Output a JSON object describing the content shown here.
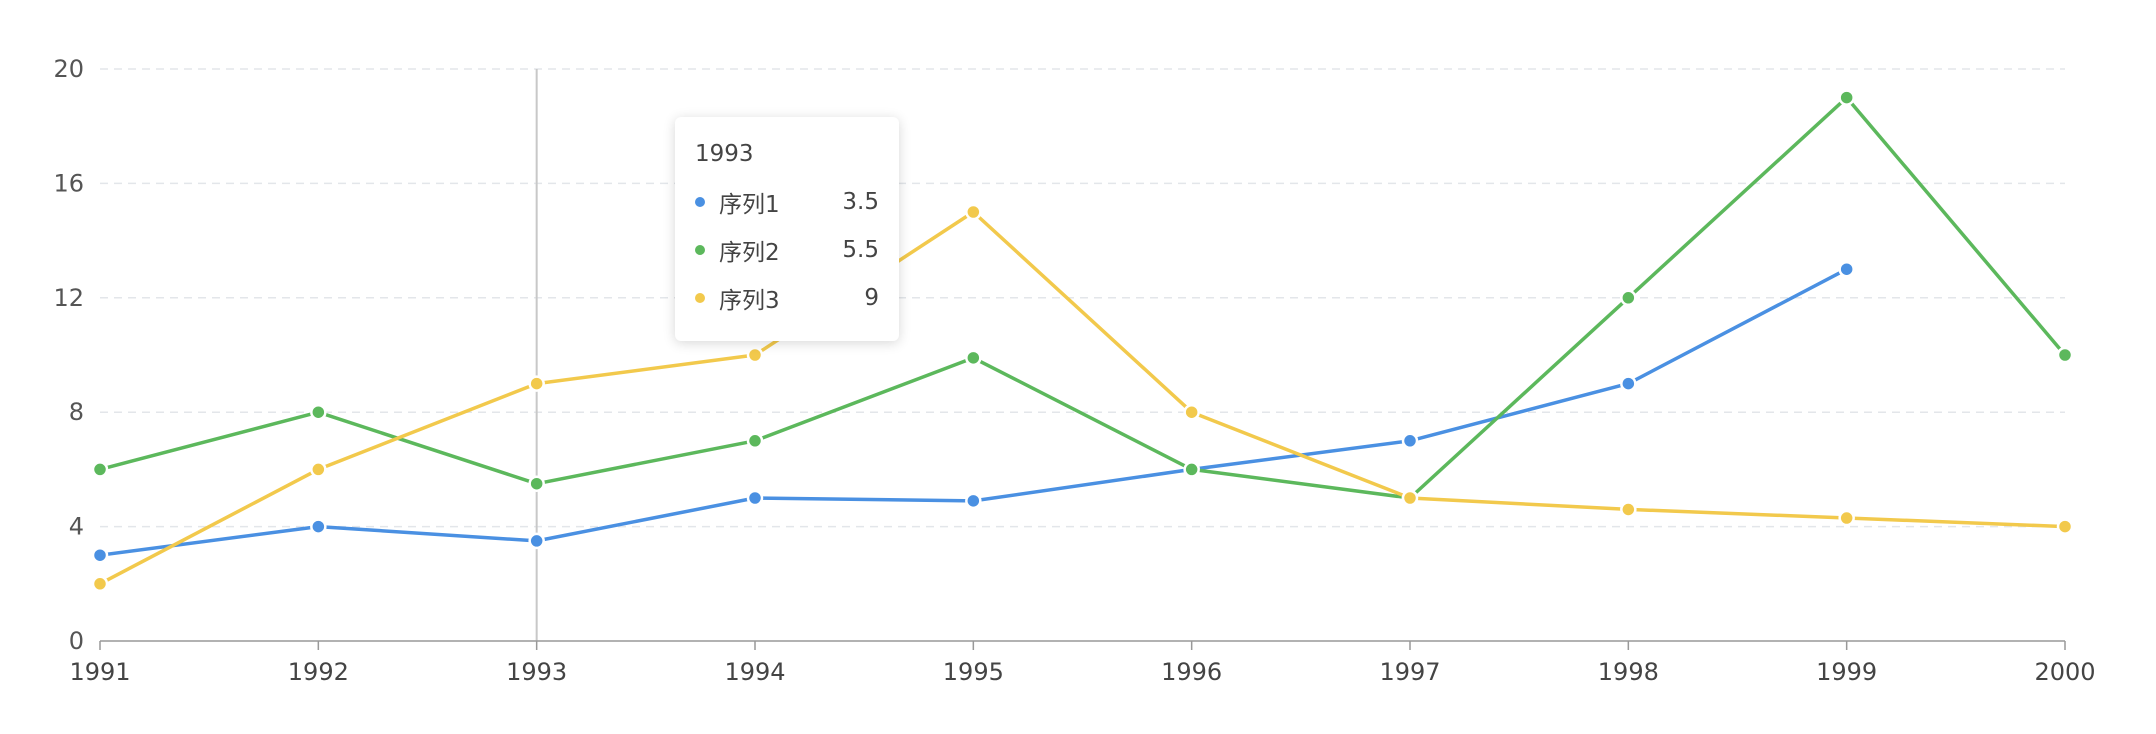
{
  "chart_data": {
    "type": "line",
    "title": "",
    "xlabel": "",
    "ylabel": "",
    "x": [
      "1991",
      "1992",
      "1993",
      "1994",
      "1995",
      "1996",
      "1997",
      "1998",
      "1999",
      "2000"
    ],
    "ylim": [
      0,
      20
    ],
    "yticks": [
      "0",
      "4",
      "8",
      "12",
      "16",
      "20"
    ],
    "grid": true,
    "series": [
      {
        "name": "序列1",
        "color": "#4a90e2",
        "values": [
          3,
          4,
          3.5,
          5,
          4.9,
          6,
          7,
          9,
          13,
          null
        ]
      },
      {
        "name": "序列2",
        "color": "#5cb85c",
        "values": [
          6,
          8,
          5.5,
          7,
          9.9,
          6,
          5,
          12,
          19,
          10
        ]
      },
      {
        "name": "序列3",
        "color": "#f2c94c",
        "values": [
          2,
          6,
          9,
          10,
          15,
          8,
          5,
          4.6,
          4.3,
          4
        ]
      }
    ],
    "crosshair_x": "1993",
    "legend": {
      "placement": "bottom"
    }
  },
  "tooltip": {
    "title": "1993",
    "rows": [
      {
        "name": "序列1",
        "value": "3.5",
        "color": "#4a90e2"
      },
      {
        "name": "序列2",
        "value": "5.5",
        "color": "#5cb85c"
      },
      {
        "name": "序列3",
        "value": "9",
        "color": "#f2c94c"
      }
    ]
  }
}
